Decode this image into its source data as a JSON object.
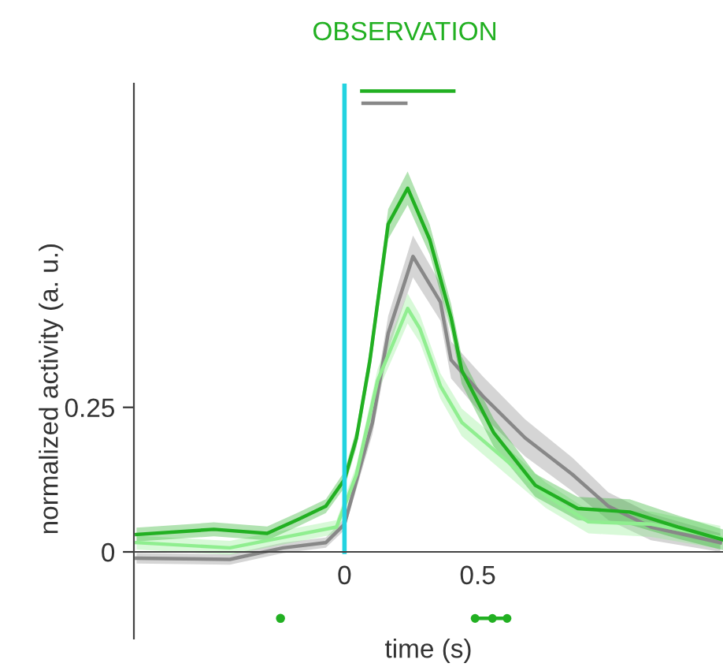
{
  "chart_data": {
    "type": "line",
    "title": "OBSERVATION",
    "xlabel": "time (s)",
    "ylabel": "normalized activity (a. u.)",
    "xlim": [
      -0.79,
      1.42
    ],
    "ylim": [
      -0.15,
      0.81
    ],
    "xticks": [
      0,
      0.5
    ],
    "yticks": [
      0,
      0.25
    ],
    "grid": false,
    "legend": false,
    "marker": "none",
    "line_style": "solid",
    "ref_lines": [
      {
        "axis": "x",
        "value": 0,
        "color": "#22d3e0"
      }
    ],
    "series": [
      {
        "color": "#888888",
        "x": [
          -0.78,
          -0.43,
          -0.23,
          -0.07,
          0,
          0.105,
          0.164,
          0.257,
          0.36,
          0.4,
          0.52,
          0.678,
          0.855,
          0.99,
          1.15,
          1.41
        ],
        "values": [
          -0.011,
          -0.013,
          0.007,
          0.016,
          0.048,
          0.224,
          0.378,
          0.511,
          0.432,
          0.332,
          0.269,
          0.197,
          0.134,
          0.079,
          0.043,
          0.016
        ],
        "lower": [
          -0.02,
          -0.022,
          -0.002,
          0.007,
          0.038,
          0.204,
          0.348,
          0.475,
          0.4,
          0.3,
          0.235,
          0.165,
          0.105,
          0.055,
          0.02,
          0.0
        ],
        "upper": [
          -0.002,
          -0.004,
          0.016,
          0.025,
          0.058,
          0.244,
          0.408,
          0.547,
          0.464,
          0.364,
          0.303,
          0.229,
          0.163,
          0.103,
          0.066,
          0.032
        ]
      },
      {
        "color": "#90ee90",
        "x": [
          -0.78,
          -0.43,
          -0.23,
          -0.03,
          0.045,
          0.124,
          0.237,
          0.283,
          0.36,
          0.44,
          0.6,
          0.755,
          0.915,
          1.15,
          1.41
        ],
        "values": [
          0.016,
          0.007,
          0.025,
          0.043,
          0.134,
          0.296,
          0.421,
          0.386,
          0.287,
          0.224,
          0.161,
          0.098,
          0.052,
          0.048,
          0.025
        ],
        "lower": [
          0.004,
          -0.005,
          0.013,
          0.031,
          0.118,
          0.276,
          0.395,
          0.362,
          0.265,
          0.2,
          0.137,
          0.076,
          0.032,
          0.026,
          0.005
        ],
        "upper": [
          0.028,
          0.019,
          0.037,
          0.055,
          0.15,
          0.316,
          0.447,
          0.41,
          0.309,
          0.248,
          0.185,
          0.12,
          0.072,
          0.07,
          0.045
        ]
      },
      {
        "color": "#22b022",
        "x": [
          -0.78,
          -0.49,
          -0.29,
          -0.17,
          -0.07,
          0,
          0.045,
          0.095,
          0.164,
          0.237,
          0.32,
          0.4,
          0.44,
          0.56,
          0.716,
          0.875,
          1.07,
          1.25,
          1.42
        ],
        "values": [
          0.03,
          0.039,
          0.032,
          0.057,
          0.079,
          0.125,
          0.197,
          0.33,
          0.567,
          0.629,
          0.54,
          0.405,
          0.314,
          0.206,
          0.115,
          0.075,
          0.069,
          0.043,
          0.021
        ],
        "lower": [
          0.018,
          0.027,
          0.02,
          0.045,
          0.067,
          0.111,
          0.181,
          0.31,
          0.541,
          0.6,
          0.514,
          0.381,
          0.29,
          0.182,
          0.095,
          0.055,
          0.047,
          0.023,
          0.003
        ],
        "upper": [
          0.042,
          0.051,
          0.044,
          0.069,
          0.091,
          0.139,
          0.213,
          0.35,
          0.593,
          0.658,
          0.566,
          0.429,
          0.338,
          0.23,
          0.135,
          0.095,
          0.091,
          0.063,
          0.039
        ]
      },
      {
        "color": "#22b022",
        "x": [
          0.065,
          0.41
        ],
        "values": [
          0.797,
          0.797
        ]
      },
      {
        "color": "#888888",
        "x": [
          0.07,
          0.23
        ],
        "values": [
          0.776,
          0.776
        ]
      },
      {
        "type": "scatter",
        "color": "#22b022",
        "marker": "circle",
        "x": [
          -0.24
        ],
        "values": [
          -0.115
        ]
      },
      {
        "color": "#22b022",
        "x": [
          0.49,
          0.555,
          0.61
        ],
        "values": [
          -0.115,
          -0.115,
          -0.115
        ],
        "marker": "circle"
      }
    ]
  }
}
